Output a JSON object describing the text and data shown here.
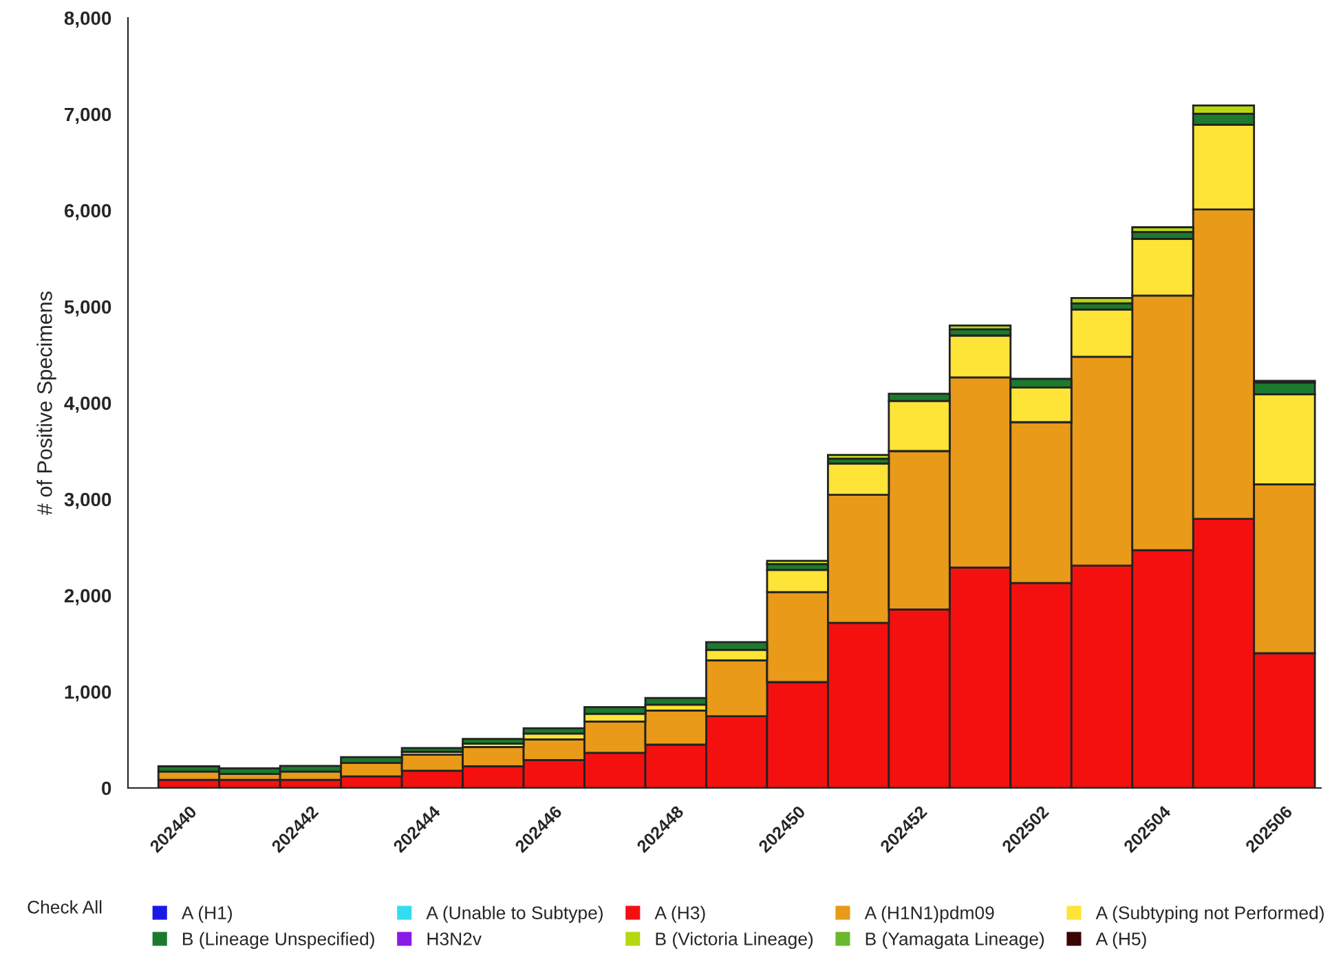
{
  "chart_data": {
    "type": "bar",
    "stacked": true,
    "categories": [
      "202440",
      null,
      "202442",
      null,
      "202444",
      null,
      "202446",
      null,
      "202448",
      null,
      "202450",
      null,
      "202452",
      null,
      "202502",
      null,
      "202504",
      null,
      "202506"
    ],
    "ylabel": "# of Positive Specimens",
    "ylim": [
      0,
      8000
    ],
    "yticks": [
      0,
      {
        "value": 1000,
        "label": "1,000"
      },
      {
        "value": 2000,
        "label": "2,000"
      },
      {
        "value": 3000,
        "label": "3,000"
      },
      {
        "value": 4000,
        "label": "4,000"
      },
      {
        "value": 5000,
        "label": "5,000"
      },
      {
        "value": 6000,
        "label": "6,000"
      },
      {
        "value": 7000,
        "label": "7,000"
      },
      {
        "value": 8000,
        "label": "8,000"
      }
    ],
    "grid": false,
    "legend": "bottom",
    "annotations": [
      "Check All"
    ],
    "series": [
      {
        "name": "A (H1)",
        "color": "#1a1ae6",
        "values": [
          0,
          0,
          0,
          0,
          0,
          0,
          0,
          0,
          0,
          0,
          0,
          0,
          0,
          0,
          0,
          0,
          0,
          0,
          0
        ]
      },
      {
        "name": "A (Unable to Subtype)",
        "color": "#33dcee",
        "values": [
          0,
          0,
          0,
          0,
          0,
          0,
          0,
          0,
          0,
          0,
          0,
          0,
          0,
          0,
          0,
          0,
          0,
          0,
          0
        ]
      },
      {
        "name": "A (H3)",
        "color": "#f51010",
        "values": [
          85,
          85,
          85,
          120,
          180,
          225,
          290,
          365,
          450,
          745,
          1100,
          1715,
          1855,
          2290,
          2130,
          2310,
          2470,
          2795,
          1400
        ]
      },
      {
        "name": "A (H1N1)pdm09",
        "color": "#e89a18",
        "values": [
          85,
          60,
          85,
          140,
          165,
          200,
          215,
          325,
          355,
          580,
          935,
          1330,
          1645,
          1975,
          1670,
          2170,
          2645,
          3215,
          1755
        ]
      },
      {
        "name": "A (Subtyping not Performed)",
        "color": "#fde436",
        "values": [
          null,
          null,
          null,
          null,
          30,
          35,
          60,
          80,
          60,
          110,
          230,
          325,
          520,
          435,
          360,
          490,
          590,
          880,
          935
        ]
      },
      {
        "name": "B (Lineage Unspecified)",
        "color": "#1b7a2e",
        "values": [
          55,
          60,
          60,
          60,
          40,
          50,
          55,
          70,
          70,
          80,
          60,
          50,
          75,
          65,
          90,
          65,
          70,
          115,
          120
        ]
      },
      {
        "name": "H3N2v",
        "color": "#8a1ae6",
        "values": [
          0,
          0,
          0,
          0,
          0,
          0,
          0,
          0,
          0,
          0,
          0,
          0,
          0,
          0,
          0,
          0,
          0,
          0,
          0
        ]
      },
      {
        "name": "B (Victoria Lineage)",
        "color": "#b5d80f",
        "values": [
          0,
          0,
          0,
          0,
          0,
          0,
          0,
          0,
          0,
          0,
          35,
          40,
          0,
          40,
          0,
          55,
          50,
          85,
          20
        ]
      },
      {
        "name": "B (Yamagata Lineage)",
        "color": "#6ab82e",
        "values": [
          0,
          0,
          0,
          0,
          0,
          0,
          0,
          0,
          0,
          0,
          0,
          0,
          0,
          0,
          0,
          0,
          0,
          0,
          0
        ]
      },
      {
        "name": "A (H5)",
        "color": "#3a0505",
        "values": [
          0,
          0,
          0,
          0,
          0,
          0,
          0,
          0,
          0,
          0,
          0,
          0,
          0,
          0,
          0,
          0,
          0,
          0,
          0
        ]
      }
    ]
  }
}
